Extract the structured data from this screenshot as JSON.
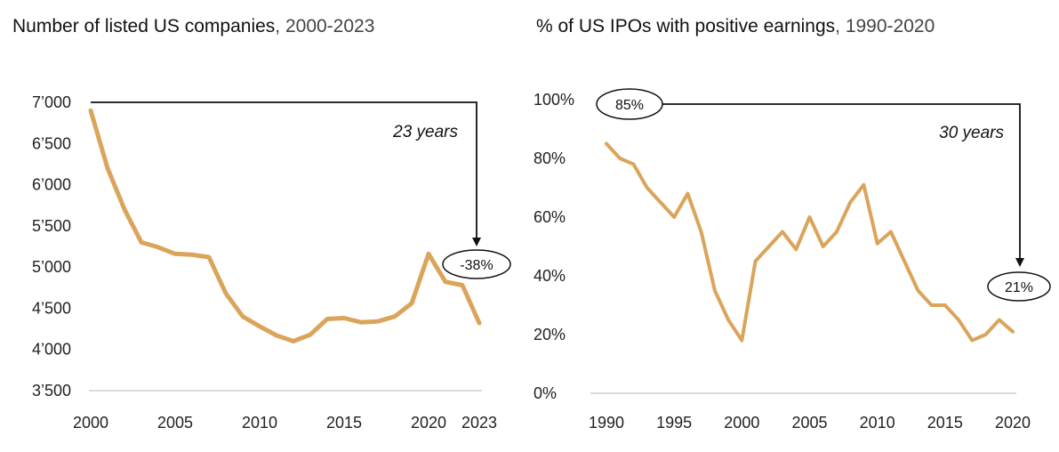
{
  "chart_data": [
    {
      "type": "line",
      "title": "Number of listed US companies",
      "subtitle": "2000-2023",
      "x_ticks": [
        "2000",
        "2005",
        "2010",
        "2015",
        "2020",
        "2023"
      ],
      "y_ticks": [
        "3’500",
        "4’000",
        "4’500",
        "5’000",
        "5’500",
        "6’000",
        "6’500",
        "7’000"
      ],
      "ylim": [
        3500,
        7000
      ],
      "xlim": [
        2000,
        2024
      ],
      "series": [
        {
          "name": "Listed US companies",
          "color": "#DBA45B",
          "x": [
            2000,
            2001,
            2002,
            2003,
            2004,
            2005,
            2006,
            2007,
            2008,
            2009,
            2010,
            2011,
            2012,
            2013,
            2014,
            2015,
            2016,
            2017,
            2018,
            2019,
            2020,
            2021,
            2022,
            2023
          ],
          "values": [
            6900,
            6200,
            5700,
            5300,
            5240,
            5160,
            5150,
            5120,
            4680,
            4400,
            4280,
            4170,
            4100,
            4180,
            4370,
            4380,
            4330,
            4340,
            4400,
            4560,
            5160,
            4820,
            4780,
            4320
          ]
        }
      ],
      "annotation": {
        "label": "23 years",
        "change": "-38%"
      }
    },
    {
      "type": "line",
      "title": "% of US IPOs with positive earnings",
      "subtitle": "1990-2020",
      "x_ticks": [
        "1990",
        "1995",
        "2000",
        "2005",
        "2010",
        "2015",
        "2020"
      ],
      "y_ticks": [
        "0%",
        "20%",
        "40%",
        "60%",
        "80%",
        "100%"
      ],
      "ylim": [
        0,
        100
      ],
      "xlim": [
        1990,
        2020
      ],
      "series": [
        {
          "name": "IPOs with positive earnings",
          "color": "#DBA45B",
          "x": [
            1990,
            1991,
            1992,
            1993,
            1994,
            1995,
            1996,
            1997,
            1998,
            1999,
            2000,
            2001,
            2002,
            2003,
            2004,
            2005,
            2006,
            2007,
            2008,
            2009,
            2010,
            2011,
            2012,
            2013,
            2014,
            2015,
            2016,
            2017,
            2018,
            2019,
            2020
          ],
          "values": [
            85,
            80,
            78,
            70,
            65,
            60,
            68,
            55,
            35,
            25,
            18,
            45,
            50,
            55,
            49,
            60,
            50,
            55,
            65,
            71,
            51,
            55,
            45,
            35,
            30,
            30,
            25,
            18,
            20,
            25,
            21
          ]
        }
      ],
      "annotation": {
        "label": "30 years",
        "start": "85%",
        "end": "21%"
      }
    }
  ]
}
